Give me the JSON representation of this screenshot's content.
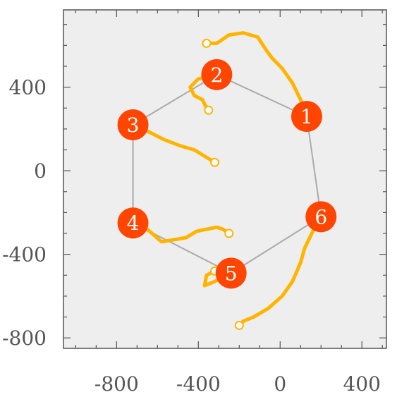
{
  "chart_data": {
    "type": "scatter",
    "title": "",
    "xlabel": "",
    "ylabel": "",
    "xlim": [
      -1060,
      520
    ],
    "ylim": [
      -850,
      770
    ],
    "xticks": [
      -800,
      -400,
      0,
      400
    ],
    "yticks": [
      -800,
      -400,
      0,
      400
    ],
    "xtick_labels": [
      "-800",
      "-400",
      "0",
      "400"
    ],
    "ytick_labels": [
      "-800",
      "-400",
      "0",
      "400"
    ],
    "grid": false,
    "colors": {
      "background": "#eeeeee",
      "frame": "#555555",
      "hexagon": "#aaaaaa",
      "trajectory": "#ffb400",
      "node": "#ff4500",
      "node_label": "#ffffff"
    },
    "nodes": [
      {
        "label": "1",
        "x": 130,
        "y": 260
      },
      {
        "label": "2",
        "x": -310,
        "y": 460
      },
      {
        "label": "3",
        "x": -720,
        "y": 220
      },
      {
        "label": "4",
        "x": -720,
        "y": -250
      },
      {
        "label": "5",
        "x": -240,
        "y": -490
      },
      {
        "label": "6",
        "x": 200,
        "y": -220
      }
    ],
    "hexagon_order": [
      "1",
      "2",
      "3",
      "4",
      "5",
      "6",
      "1"
    ],
    "trajectories": [
      {
        "node": "1",
        "points": [
          [
            130,
            260
          ],
          [
            100,
            340
          ],
          [
            60,
            420
          ],
          [
            10,
            490
          ],
          [
            -40,
            540
          ],
          [
            -70,
            580
          ],
          [
            -110,
            640
          ],
          [
            -180,
            660
          ],
          [
            -250,
            650
          ],
          [
            -310,
            610
          ],
          [
            -360,
            610
          ]
        ]
      },
      {
        "node": "2",
        "points": [
          [
            -310,
            460
          ],
          [
            -350,
            450
          ],
          [
            -400,
            440
          ],
          [
            -440,
            400
          ],
          [
            -420,
            360
          ],
          [
            -380,
            340
          ],
          [
            -360,
            300
          ],
          [
            -350,
            290
          ]
        ]
      },
      {
        "node": "3",
        "points": [
          [
            -720,
            220
          ],
          [
            -650,
            190
          ],
          [
            -570,
            150
          ],
          [
            -490,
            120
          ],
          [
            -420,
            100
          ],
          [
            -370,
            70
          ],
          [
            -320,
            40
          ]
        ]
      },
      {
        "node": "4",
        "points": [
          [
            -720,
            -250
          ],
          [
            -650,
            -280
          ],
          [
            -580,
            -340
          ],
          [
            -520,
            -330
          ],
          [
            -460,
            -320
          ],
          [
            -410,
            -290
          ],
          [
            -360,
            -280
          ],
          [
            -310,
            -270
          ],
          [
            -280,
            -280
          ],
          [
            -250,
            -300
          ]
        ]
      },
      {
        "node": "5",
        "points": [
          [
            -240,
            -490
          ],
          [
            -280,
            -510
          ],
          [
            -320,
            -530
          ],
          [
            -370,
            -550
          ],
          [
            -360,
            -500
          ],
          [
            -320,
            -480
          ]
        ]
      },
      {
        "node": "6",
        "points": [
          [
            200,
            -220
          ],
          [
            160,
            -290
          ],
          [
            120,
            -370
          ],
          [
            100,
            -440
          ],
          [
            60,
            -530
          ],
          [
            10,
            -600
          ],
          [
            -60,
            -660
          ],
          [
            -130,
            -700
          ],
          [
            -180,
            -720
          ],
          [
            -200,
            -740
          ]
        ]
      }
    ]
  }
}
